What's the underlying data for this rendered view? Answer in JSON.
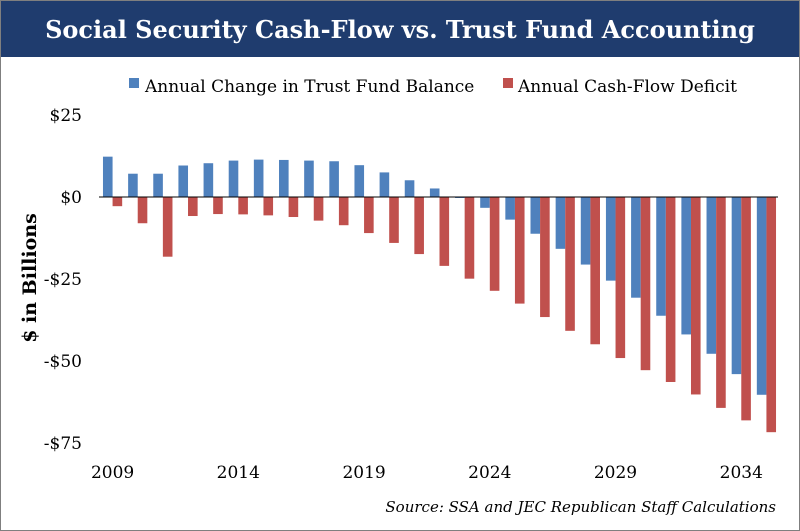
{
  "title": "Social Security Cash-Flow vs. Trust Fund Accounting",
  "source": "Source: SSA and JEC Republican Staff Calculations",
  "colors": {
    "title_bg": "#1f3c6e",
    "series_trust": "#4f81bd",
    "series_cash": "#c0504d"
  },
  "chart_data": {
    "type": "bar",
    "title": "Social Security Cash-Flow vs. Trust Fund Accounting",
    "xlabel": "",
    "ylabel": "$ in Billions",
    "ylim": [
      -75,
      25
    ],
    "yticks": [
      25,
      0,
      -25,
      -50,
      -75
    ],
    "ytick_labels": [
      "$25",
      "$0",
      "-$25",
      "-$50",
      "-$75"
    ],
    "xtick_years": [
      2009,
      2014,
      2019,
      2024,
      2029,
      2034
    ],
    "xtick_labels": [
      "2009",
      "2014",
      "2019",
      "2024",
      "2029",
      "2034"
    ],
    "legend_position": "top",
    "grid": false,
    "categories": [
      2009,
      2010,
      2011,
      2012,
      2013,
      2014,
      2015,
      2016,
      2017,
      2018,
      2019,
      2020,
      2021,
      2022,
      2023,
      2024,
      2025,
      2026,
      2027,
      2028,
      2029,
      2030,
      2031,
      2032,
      2033,
      2034,
      2035
    ],
    "series": [
      {
        "name": "Annual Change in Trust Fund Balance",
        "color": "#4f81bd",
        "values": [
          12.3,
          7.1,
          7.1,
          9.6,
          10.3,
          11.1,
          11.4,
          11.3,
          11.1,
          10.9,
          9.7,
          7.5,
          5.1,
          2.6,
          -0.3,
          -3.3,
          -6.9,
          -11.2,
          -15.8,
          -20.6,
          -25.5,
          -30.7,
          -36.2,
          -41.9,
          -47.8,
          -54.0,
          -60.3
        ]
      },
      {
        "name": "Annual Cash-Flow Deficit",
        "color": "#c0504d",
        "values": [
          -2.8,
          -8.0,
          -18.2,
          -5.8,
          -5.2,
          -5.3,
          -5.6,
          -6.1,
          -7.2,
          -8.6,
          -11.0,
          -14.0,
          -17.4,
          -21.0,
          -24.9,
          -28.6,
          -32.5,
          -36.6,
          -40.8,
          -44.9,
          -49.1,
          -52.8,
          -56.4,
          -60.2,
          -64.3,
          -68.1,
          -71.7
        ]
      }
    ]
  }
}
